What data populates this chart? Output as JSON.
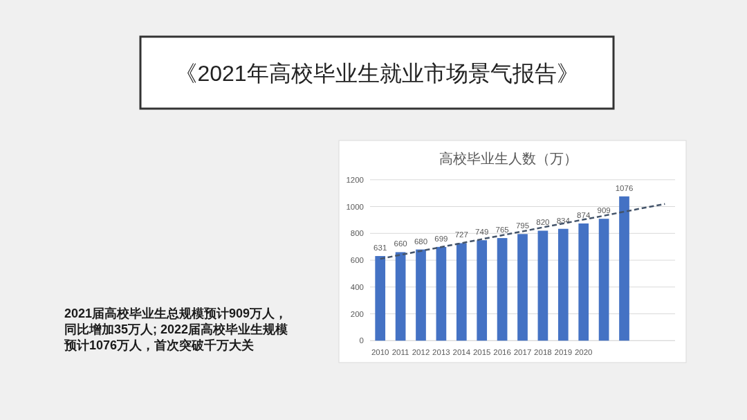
{
  "chart_data": {
    "type": "bar",
    "title": "高校毕业生人数（万）",
    "categories": [
      "2010",
      "2011",
      "2012",
      "2013",
      "2014",
      "2015",
      "2016",
      "2017",
      "2018",
      "2019",
      "2020",
      null,
      null,
      null,
      null
    ],
    "series": [
      {
        "color": "#4472c4",
        "values": [
          631,
          660,
          680,
          699,
          727,
          749,
          765,
          795,
          820,
          834,
          874,
          909,
          1076,
          null,
          null
        ],
        "value_labels": [
          "631",
          "660",
          "680",
          "699",
          "727",
          "749",
          "765",
          "795",
          "820",
          "834",
          "874",
          "909",
          "1076",
          null,
          null
        ]
      },
      {
        "type": "line",
        "color": "#44546a",
        "line_style": "dashed",
        "values": [
          610,
          640,
          669,
          698,
          727,
          757,
          786,
          815,
          845,
          874,
          903,
          932,
          962,
          991,
          1020
        ]
      }
    ],
    "ylim": [
      0,
      1200
    ],
    "yticks": [
      0,
      200,
      400,
      600,
      800,
      1000,
      1200
    ],
    "grid": "y",
    "annotations": [
      "《2021年高校毕业生就业市场景气报告》",
      "2021届高校毕业生总规模预计909万人，同比增加35万人; 2022届高校毕业生规模预计1076万人，首次突破千万大关"
    ]
  }
}
